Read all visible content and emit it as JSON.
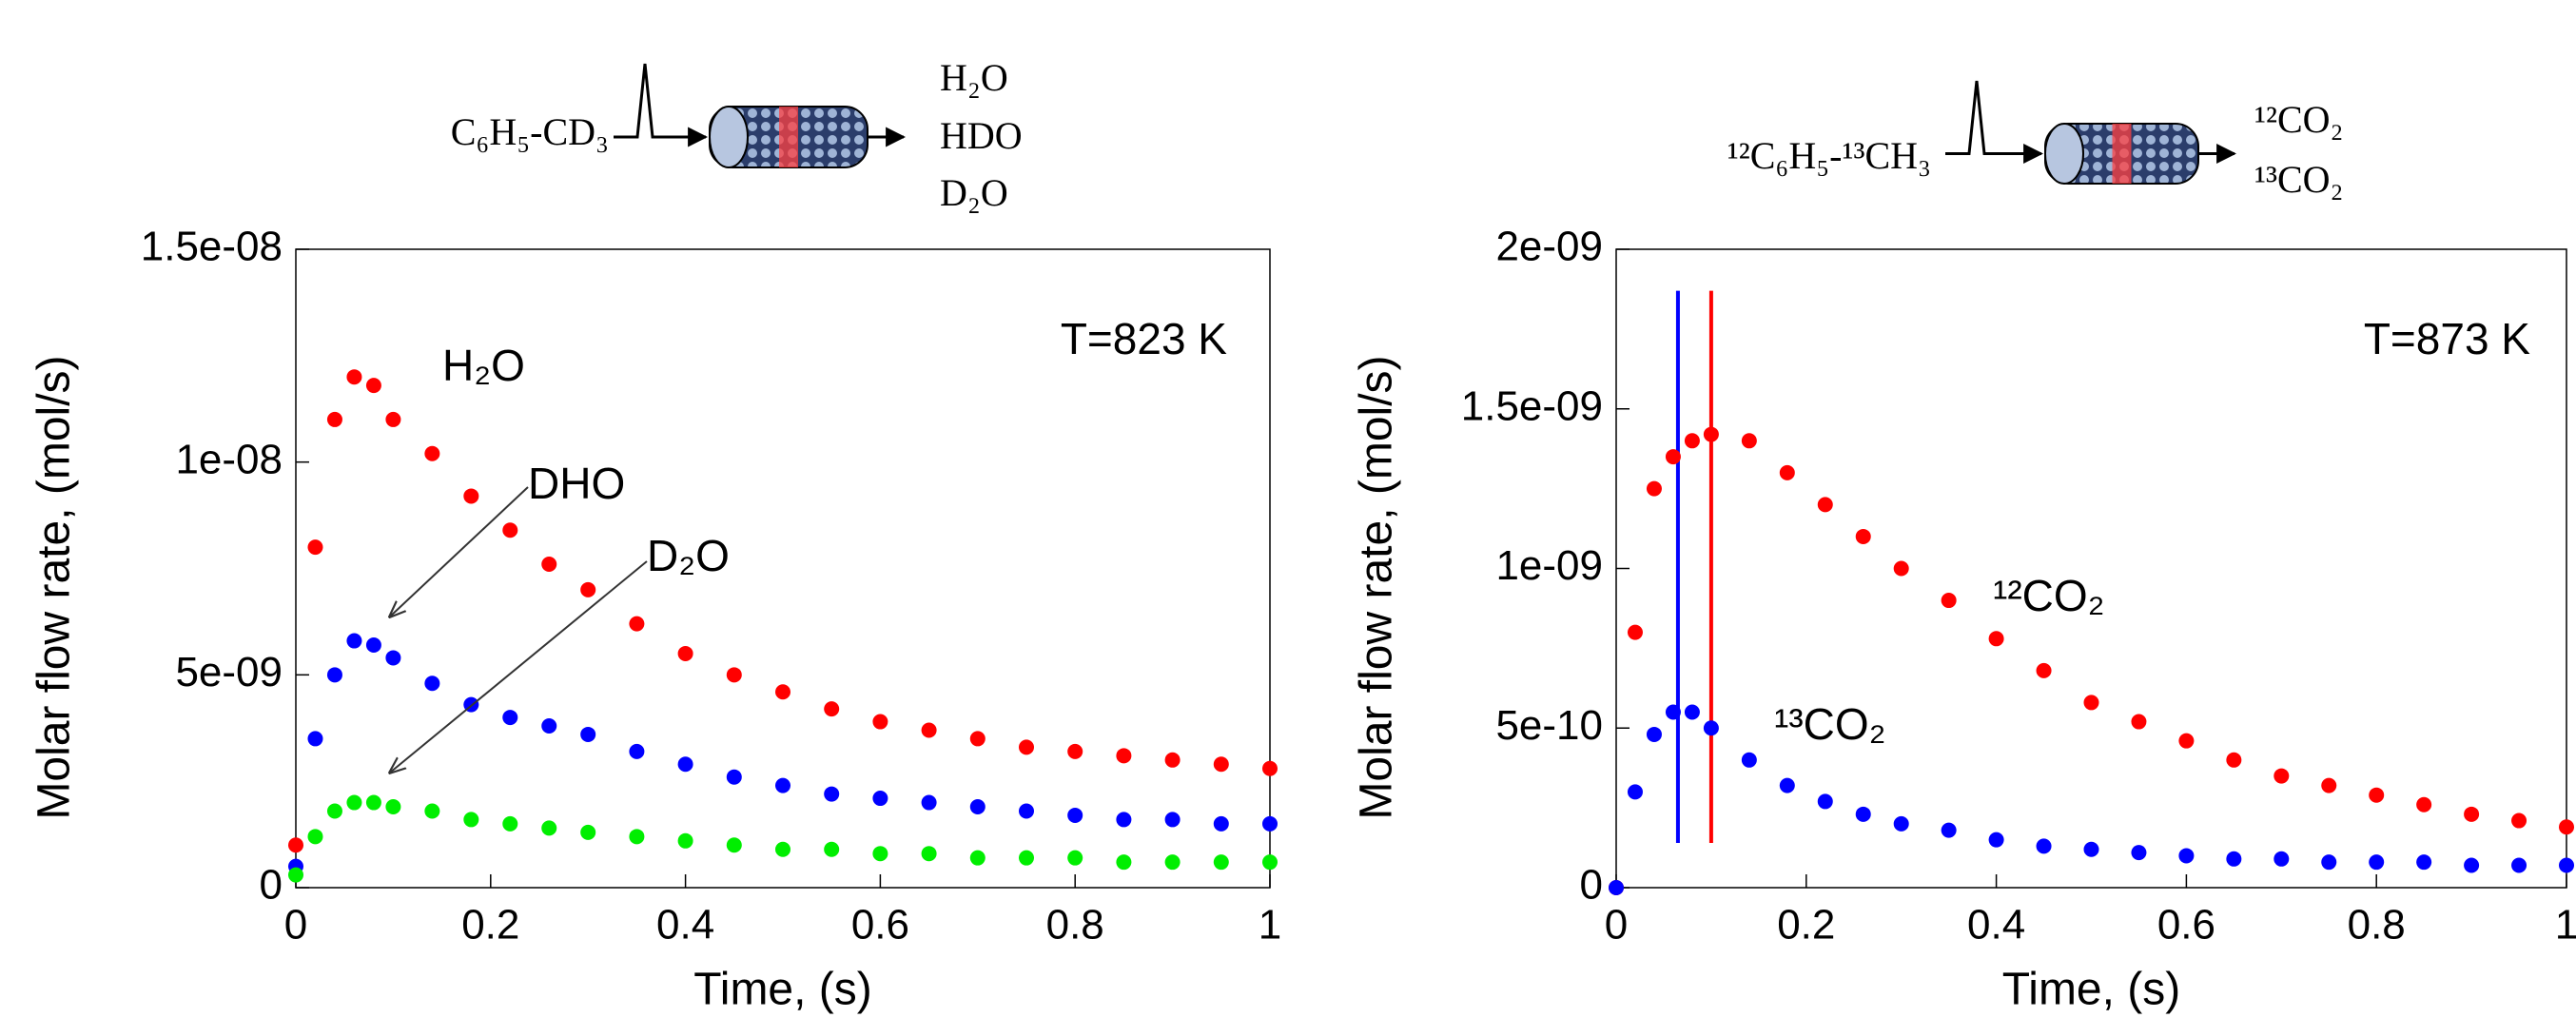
{
  "chart_data": [
    {
      "type": "scatter",
      "reactant": "C₆H₅-CD₃",
      "products": [
        "H₂O",
        "HDO",
        "D₂O"
      ],
      "annotation": "T=823 K",
      "xlabel": "Time, (s)",
      "ylabel": "Molar flow rate, (mol/s)",
      "x": [
        0,
        0.02,
        0.04,
        0.06,
        0.08,
        0.1,
        0.14,
        0.18,
        0.22,
        0.26,
        0.3,
        0.35,
        0.4,
        0.45,
        0.5,
        0.55,
        0.6,
        0.65,
        0.7,
        0.75,
        0.8,
        0.85,
        0.9,
        0.95,
        1.0
      ],
      "series": [
        {
          "name": "H₂O",
          "color": "#ff0000",
          "values": [
            1e-09,
            8e-09,
            1.1e-08,
            1.2e-08,
            1.18e-08,
            1.1e-08,
            1.02e-08,
            9.2e-09,
            8.4e-09,
            7.6e-09,
            7e-09,
            6.2e-09,
            5.5e-09,
            5e-09,
            4.6e-09,
            4.2e-09,
            3.9e-09,
            3.7e-09,
            3.5e-09,
            3.3e-09,
            3.2e-09,
            3.1e-09,
            3e-09,
            2.9e-09,
            2.8e-09
          ]
        },
        {
          "name": "DHO",
          "color": "#0000ff",
          "values": [
            5e-10,
            3.5e-09,
            5e-09,
            5.8e-09,
            5.7e-09,
            5.4e-09,
            4.8e-09,
            4.3e-09,
            4e-09,
            3.8e-09,
            3.6e-09,
            3.2e-09,
            2.9e-09,
            2.6e-09,
            2.4e-09,
            2.2e-09,
            2.1e-09,
            2e-09,
            1.9e-09,
            1.8e-09,
            1.7e-09,
            1.6e-09,
            1.6e-09,
            1.5e-09,
            1.5e-09
          ]
        },
        {
          "name": "D₂O",
          "color": "#00ee00",
          "values": [
            3e-10,
            1.2e-09,
            1.8e-09,
            2e-09,
            2e-09,
            1.9e-09,
            1.8e-09,
            1.6e-09,
            1.5e-09,
            1.4e-09,
            1.3e-09,
            1.2e-09,
            1.1e-09,
            1e-09,
            9e-10,
            9e-10,
            8e-10,
            8e-10,
            7e-10,
            7e-10,
            7e-10,
            6e-10,
            6e-10,
            6e-10,
            6e-10
          ]
        }
      ],
      "xlim": [
        0,
        1
      ],
      "xticks": [
        0,
        0.2,
        0.4,
        0.6,
        0.8,
        1
      ],
      "ylim": [
        0,
        1.5e-08
      ],
      "yticks": [
        0,
        {
          "value": 5e-09,
          "label": "5e-09"
        },
        {
          "value": 1e-08,
          "label": "1e-08"
        },
        {
          "value": 1.5e-08,
          "label": "1.5e-08"
        }
      ]
    },
    {
      "type": "scatter",
      "reactant": "¹²C₆H₅-¹³CH₃",
      "products": [
        "¹²CO₂",
        "¹³CO₂"
      ],
      "annotation": "T=873 K",
      "xlabel": "Time, (s)",
      "ylabel": "Molar flow rate, (mol/s)",
      "x": [
        0,
        0.02,
        0.04,
        0.06,
        0.08,
        0.1,
        0.14,
        0.18,
        0.22,
        0.26,
        0.3,
        0.35,
        0.4,
        0.45,
        0.5,
        0.55,
        0.6,
        0.65,
        0.7,
        0.75,
        0.8,
        0.85,
        0.9,
        0.95,
        1.0
      ],
      "series": [
        {
          "name": "¹²CO₂",
          "color": "#ff0000",
          "values": [
            0,
            8e-10,
            1.25e-09,
            1.35e-09,
            1.4e-09,
            1.42e-09,
            1.4e-09,
            1.3e-09,
            1.2e-09,
            1.1e-09,
            1e-09,
            9e-10,
            7.8e-10,
            6.8e-10,
            5.8e-10,
            5.2e-10,
            4.6e-10,
            4e-10,
            3.5e-10,
            3.2e-10,
            2.9e-10,
            2.6e-10,
            2.3e-10,
            2.1e-10,
            1.9e-10
          ]
        },
        {
          "name": "¹³CO₂",
          "color": "#0000ff",
          "values": [
            0,
            3e-10,
            4.8e-10,
            5.5e-10,
            5.5e-10,
            5e-10,
            4e-10,
            3.2e-10,
            2.7e-10,
            2.3e-10,
            2e-10,
            1.8e-10,
            1.5e-10,
            1.3e-10,
            1.2e-10,
            1.1e-10,
            1e-10,
            9e-11,
            9e-11,
            8e-11,
            8e-11,
            8e-11,
            7e-11,
            7e-11,
            7e-11
          ]
        }
      ],
      "vlines": [
        {
          "x": 0.065,
          "ymin": 1.4e-10,
          "ymax": 1.87e-09,
          "color": "#0000ff"
        },
        {
          "x": 0.1,
          "ymin": 1.4e-10,
          "ymax": 1.87e-09,
          "color": "#ff0000"
        }
      ],
      "xlim": [
        0,
        1
      ],
      "xticks": [
        0,
        0.2,
        0.4,
        0.6,
        0.8,
        1
      ],
      "ylim": [
        0,
        2e-09
      ],
      "yticks": [
        0,
        {
          "value": 5e-10,
          "label": "5e-10"
        },
        {
          "value": 1e-09,
          "label": "1e-09"
        },
        {
          "value": 1.5e-09,
          "label": "1.5e-09"
        },
        {
          "value": 2e-09,
          "label": "2e-09"
        }
      ]
    }
  ]
}
